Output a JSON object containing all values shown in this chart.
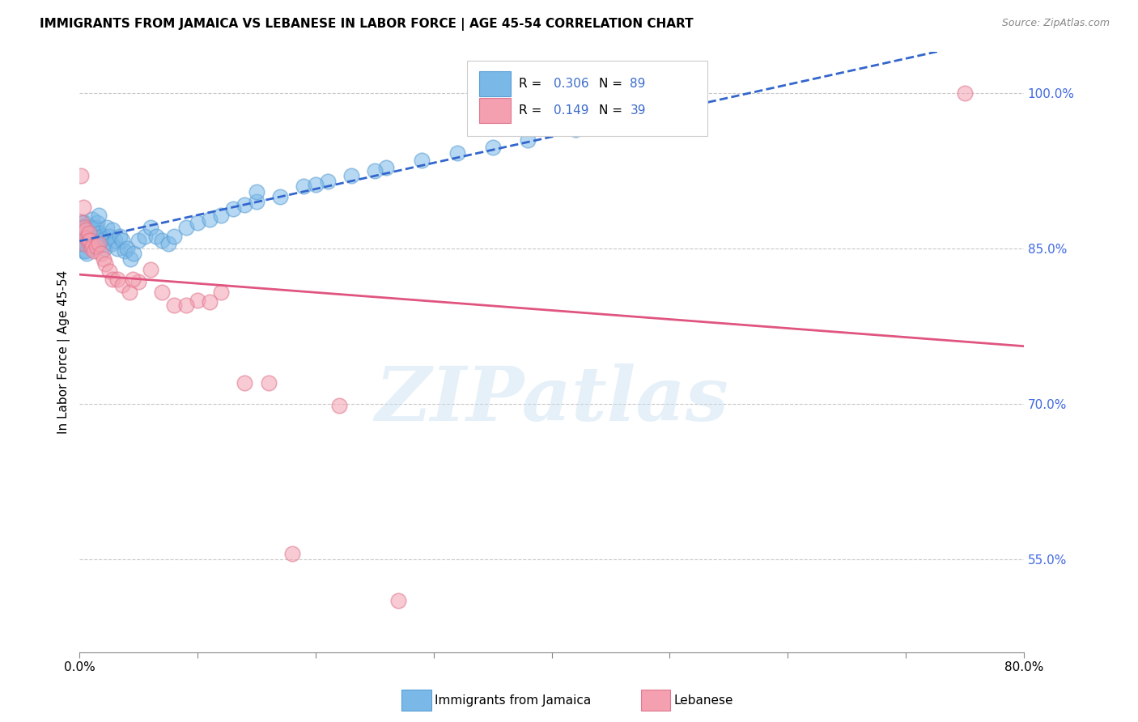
{
  "title": "IMMIGRANTS FROM JAMAICA VS LEBANESE IN LABOR FORCE | AGE 45-54 CORRELATION CHART",
  "source": "Source: ZipAtlas.com",
  "ylabel": "In Labor Force | Age 45-54",
  "xlim": [
    0.0,
    0.8
  ],
  "ylim": [
    0.46,
    1.04
  ],
  "x_ticks": [
    0.0,
    0.1,
    0.2,
    0.3,
    0.4,
    0.5,
    0.6,
    0.7,
    0.8
  ],
  "x_tick_labels": [
    "0.0%",
    "",
    "",
    "",
    "",
    "",
    "",
    "",
    "80.0%"
  ],
  "y_ticks_right": [
    1.0,
    0.85,
    0.7,
    0.55
  ],
  "y_tick_labels_right": [
    "100.0%",
    "85.0%",
    "70.0%",
    "55.0%"
  ],
  "gridline_color": "#c8c8c8",
  "background_color": "#ffffff",
  "jamaica_color": "#7ab8e8",
  "jamaica_edge_color": "#5a9fd4",
  "lebanese_color": "#f4a0b0",
  "lebanese_edge_color": "#e07890",
  "jamaica_R": 0.306,
  "jamaica_N": 89,
  "lebanese_R": 0.149,
  "lebanese_N": 39,
  "legend_label_jamaica": "Immigrants from Jamaica",
  "legend_label_lebanese": "Lebanese",
  "watermark_text": "ZIPatlas",
  "jamaica_line_color": "#3366cc",
  "lebanese_line_color": "#e05580",
  "jamaica_x": [
    0.001,
    0.001,
    0.001,
    0.002,
    0.002,
    0.002,
    0.002,
    0.002,
    0.003,
    0.003,
    0.003,
    0.003,
    0.003,
    0.004,
    0.004,
    0.004,
    0.004,
    0.005,
    0.005,
    0.005,
    0.005,
    0.006,
    0.006,
    0.006,
    0.006,
    0.007,
    0.007,
    0.007,
    0.008,
    0.008,
    0.008,
    0.009,
    0.009,
    0.01,
    0.01,
    0.011,
    0.011,
    0.012,
    0.012,
    0.013,
    0.014,
    0.015,
    0.016,
    0.017,
    0.018,
    0.019,
    0.02,
    0.021,
    0.022,
    0.023,
    0.025,
    0.027,
    0.028,
    0.03,
    0.032,
    0.034,
    0.036,
    0.038,
    0.04,
    0.043,
    0.046,
    0.05,
    0.055,
    0.06,
    0.065,
    0.07,
    0.075,
    0.08,
    0.09,
    0.1,
    0.11,
    0.12,
    0.13,
    0.14,
    0.15,
    0.17,
    0.19,
    0.21,
    0.23,
    0.26,
    0.29,
    0.32,
    0.35,
    0.38,
    0.42,
    0.46,
    0.15,
    0.2,
    0.25
  ],
  "jamaica_y": [
    0.855,
    0.865,
    0.87,
    0.86,
    0.87,
    0.875,
    0.865,
    0.855,
    0.862,
    0.868,
    0.872,
    0.858,
    0.848,
    0.865,
    0.87,
    0.875,
    0.855,
    0.862,
    0.868,
    0.858,
    0.848,
    0.87,
    0.86,
    0.855,
    0.845,
    0.865,
    0.86,
    0.855,
    0.87,
    0.862,
    0.855,
    0.865,
    0.858,
    0.87,
    0.862,
    0.868,
    0.878,
    0.862,
    0.858,
    0.865,
    0.87,
    0.875,
    0.882,
    0.865,
    0.858,
    0.862,
    0.855,
    0.85,
    0.86,
    0.87,
    0.862,
    0.855,
    0.868,
    0.858,
    0.85,
    0.862,
    0.858,
    0.848,
    0.85,
    0.84,
    0.845,
    0.858,
    0.862,
    0.87,
    0.862,
    0.858,
    0.855,
    0.862,
    0.87,
    0.875,
    0.878,
    0.882,
    0.888,
    0.892,
    0.895,
    0.9,
    0.91,
    0.915,
    0.92,
    0.928,
    0.935,
    0.942,
    0.948,
    0.955,
    0.965,
    0.972,
    0.905,
    0.912,
    0.925
  ],
  "lebanese_x": [
    0.001,
    0.002,
    0.002,
    0.003,
    0.004,
    0.004,
    0.005,
    0.006,
    0.007,
    0.008,
    0.009,
    0.01,
    0.011,
    0.012,
    0.014,
    0.016,
    0.018,
    0.02,
    0.022,
    0.025,
    0.028,
    0.032,
    0.036,
    0.042,
    0.05,
    0.06,
    0.07,
    0.08,
    0.1,
    0.12,
    0.14,
    0.16,
    0.18,
    0.22,
    0.27,
    0.75,
    0.045,
    0.09,
    0.11
  ],
  "lebanese_y": [
    0.92,
    0.875,
    0.865,
    0.89,
    0.87,
    0.855,
    0.868,
    0.86,
    0.858,
    0.865,
    0.858,
    0.85,
    0.852,
    0.848,
    0.852,
    0.855,
    0.845,
    0.84,
    0.835,
    0.828,
    0.82,
    0.82,
    0.815,
    0.808,
    0.818,
    0.83,
    0.808,
    0.795,
    0.8,
    0.808,
    0.72,
    0.72,
    0.555,
    0.698,
    0.51,
    1.0,
    0.82,
    0.795,
    0.798
  ]
}
